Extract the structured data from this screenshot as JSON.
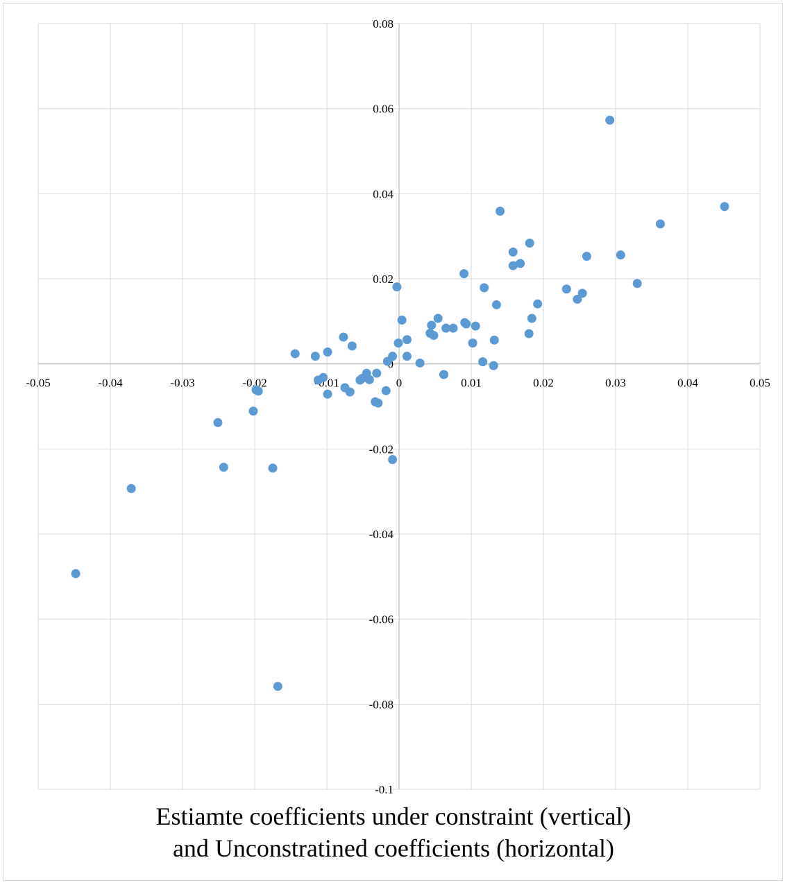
{
  "caption": {
    "line1": "Estiamte coefficients under constraint (vertical)",
    "line2": "and Unconstratined coefficients (horizontal)"
  },
  "chart_data": {
    "type": "scatter",
    "title": "Estiamte coefficients under constraint (vertical) and Unconstratined coefficients (horizontal)",
    "xlim": [
      -0.05,
      0.05
    ],
    "ylim": [
      -0.1,
      0.08
    ],
    "x_ticks": [
      "-0.05",
      "-0.04",
      "-0.03",
      "-0.02",
      "-0.01",
      "0",
      "0.01",
      "0.02",
      "0.03",
      "0.04",
      "0.05"
    ],
    "y_ticks": [
      "0.08",
      "0.06",
      "0.04",
      "0.02",
      "0",
      "-0.02",
      "-0.04",
      "-0.06",
      "-0.08",
      "-0.1"
    ],
    "grid": true,
    "marker_color": "#5b9bd5",
    "points": [
      [
        -0.0448,
        -0.0493
      ],
      [
        -0.0371,
        -0.0293
      ],
      [
        -0.0251,
        -0.0138
      ],
      [
        -0.0243,
        -0.0243
      ],
      [
        -0.0202,
        -0.0111
      ],
      [
        -0.0198,
        -0.0061
      ],
      [
        -0.0195,
        -0.0064
      ],
      [
        -0.0175,
        -0.0245
      ],
      [
        -0.0168,
        -0.0758
      ],
      [
        -0.0144,
        0.0024
      ],
      [
        -0.0116,
        0.0018
      ],
      [
        -0.0112,
        -0.0038
      ],
      [
        -0.0105,
        -0.0032
      ],
      [
        -0.0099,
        0.0028
      ],
      [
        -0.0099,
        -0.0071
      ],
      [
        -0.0077,
        0.0063
      ],
      [
        -0.0075,
        -0.0056
      ],
      [
        -0.0068,
        -0.0066
      ],
      [
        -0.0065,
        0.0042
      ],
      [
        -0.0054,
        -0.0038
      ],
      [
        -0.0051,
        -0.0034
      ],
      [
        -0.0045,
        -0.0022
      ],
      [
        -0.0041,
        -0.0037
      ],
      [
        -0.0033,
        -0.0089
      ],
      [
        -0.0031,
        -0.0022
      ],
      [
        -0.0029,
        -0.0092
      ],
      [
        -0.0018,
        -0.0063
      ],
      [
        -0.0016,
        0.0006
      ],
      [
        -0.0009,
        0.0018
      ],
      [
        -0.0009,
        -0.0225
      ],
      [
        -0.0003,
        0.0181
      ],
      [
        -0.0001,
        0.0049
      ],
      [
        0.0004,
        0.0103
      ],
      [
        0.0011,
        0.0057
      ],
      [
        0.0011,
        0.0018
      ],
      [
        0.0029,
        0.0002
      ],
      [
        0.0043,
        0.0072
      ],
      [
        0.0045,
        0.0091
      ],
      [
        0.0048,
        0.0067
      ],
      [
        0.0054,
        0.0107
      ],
      [
        0.0062,
        -0.0025
      ],
      [
        0.0065,
        0.0084
      ],
      [
        0.0075,
        0.0084
      ],
      [
        0.009,
        0.0212
      ],
      [
        0.0091,
        0.0097
      ],
      [
        0.0093,
        0.0094
      ],
      [
        0.0102,
        0.0049
      ],
      [
        0.0106,
        0.0089
      ],
      [
        0.0116,
        0.0005
      ],
      [
        0.0118,
        0.0179
      ],
      [
        0.0131,
        -0.0004
      ],
      [
        0.0132,
        0.0056
      ],
      [
        0.0135,
        0.0139
      ],
      [
        0.014,
        0.0359
      ],
      [
        0.0158,
        0.0263
      ],
      [
        0.0158,
        0.0231
      ],
      [
        0.0168,
        0.0236
      ],
      [
        0.018,
        0.0071
      ],
      [
        0.0181,
        0.0284
      ],
      [
        0.0184,
        0.0107
      ],
      [
        0.0192,
        0.0141
      ],
      [
        0.0232,
        0.0176
      ],
      [
        0.0247,
        0.0152
      ],
      [
        0.0254,
        0.0166
      ],
      [
        0.026,
        0.0253
      ],
      [
        0.0292,
        0.0573
      ],
      [
        0.0307,
        0.0256
      ],
      [
        0.033,
        0.0189
      ],
      [
        0.0362,
        0.0329
      ],
      [
        0.0451,
        0.037
      ]
    ]
  }
}
